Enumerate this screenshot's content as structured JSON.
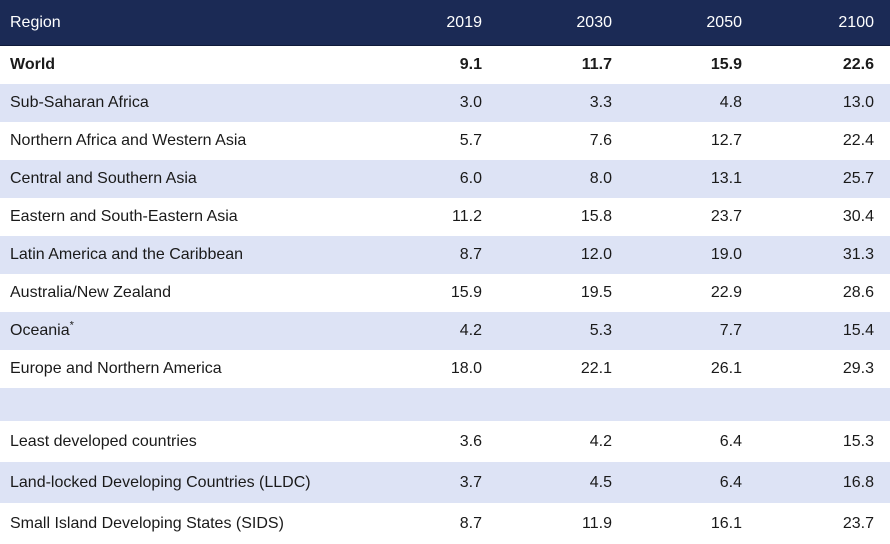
{
  "header": {
    "region": "Region",
    "y2019": "2019",
    "y2030": "2030",
    "y2050": "2050",
    "y2100": "2100"
  },
  "rows": [
    {
      "region": "World",
      "y2019": "9.1",
      "y2030": "11.7",
      "y2050": "15.9",
      "y2100": "22.6"
    },
    {
      "region": "Sub-Saharan Africa",
      "y2019": "3.0",
      "y2030": "3.3",
      "y2050": "4.8",
      "y2100": "13.0"
    },
    {
      "region": "Northern Africa and Western Asia",
      "y2019": "5.7",
      "y2030": "7.6",
      "y2050": "12.7",
      "y2100": "22.4"
    },
    {
      "region": "Central and Southern Asia",
      "y2019": "6.0",
      "y2030": "8.0",
      "y2050": "13.1",
      "y2100": "25.7"
    },
    {
      "region": "Eastern and South-Eastern Asia",
      "y2019": "11.2",
      "y2030": "15.8",
      "y2050": "23.7",
      "y2100": "30.4"
    },
    {
      "region": "Latin America and the Caribbean",
      "y2019": "8.7",
      "y2030": "12.0",
      "y2050": "19.0",
      "y2100": "31.3"
    },
    {
      "region": "Australia/New Zealand",
      "y2019": "15.9",
      "y2030": "19.5",
      "y2050": "22.9",
      "y2100": "28.6"
    },
    {
      "region": "Oceania",
      "marker": "*",
      "y2019": "4.2",
      "y2030": "5.3",
      "y2050": "7.7",
      "y2100": "15.4"
    },
    {
      "region": "Europe and Northern America",
      "y2019": "18.0",
      "y2030": "22.1",
      "y2050": "26.1",
      "y2100": "29.3"
    },
    {
      "region": "Least developed countries",
      "y2019": "3.6",
      "y2030": "4.2",
      "y2050": "6.4",
      "y2100": "15.3"
    },
    {
      "region": "Land-locked Developing Countries (LLDC)",
      "y2019": "3.7",
      "y2030": "4.5",
      "y2050": "6.4",
      "y2100": "16.8"
    },
    {
      "region": "Small Island Developing States (SIDS)",
      "y2019": "8.7",
      "y2030": "11.9",
      "y2050": "16.1",
      "y2100": "23.7"
    }
  ],
  "colors": {
    "header_bg": "#1b2a55",
    "header_text": "#ffffff",
    "stripe": "#dde3f5",
    "plain": "#ffffff"
  }
}
